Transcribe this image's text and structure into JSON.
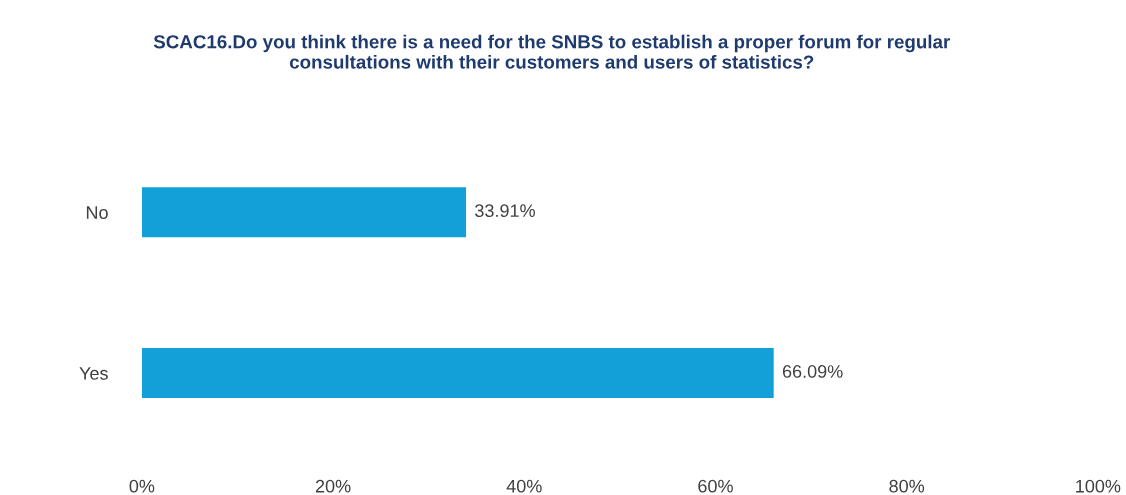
{
  "chart_data": {
    "type": "bar",
    "orientation": "horizontal",
    "title": "SCAC16.Do you think there is a need for the SNBS to establish a proper forum for regular consultations with their customers and users of statistics?",
    "categories": [
      "No",
      "Yes"
    ],
    "values": [
      33.91,
      66.09
    ],
    "color": "#139fd7",
    "value_labels": [
      "33.91%",
      "66.09%"
    ],
    "xlim": [
      0,
      100
    ],
    "xticks": [
      {
        "value": 0,
        "label": "0%"
      },
      {
        "value": 20,
        "label": "20%"
      },
      {
        "value": 40,
        "label": "40%"
      },
      {
        "value": 60,
        "label": "60%"
      },
      {
        "value": 80,
        "label": "80%"
      },
      {
        "value": 100,
        "label": "100%"
      }
    ],
    "grid": false
  }
}
